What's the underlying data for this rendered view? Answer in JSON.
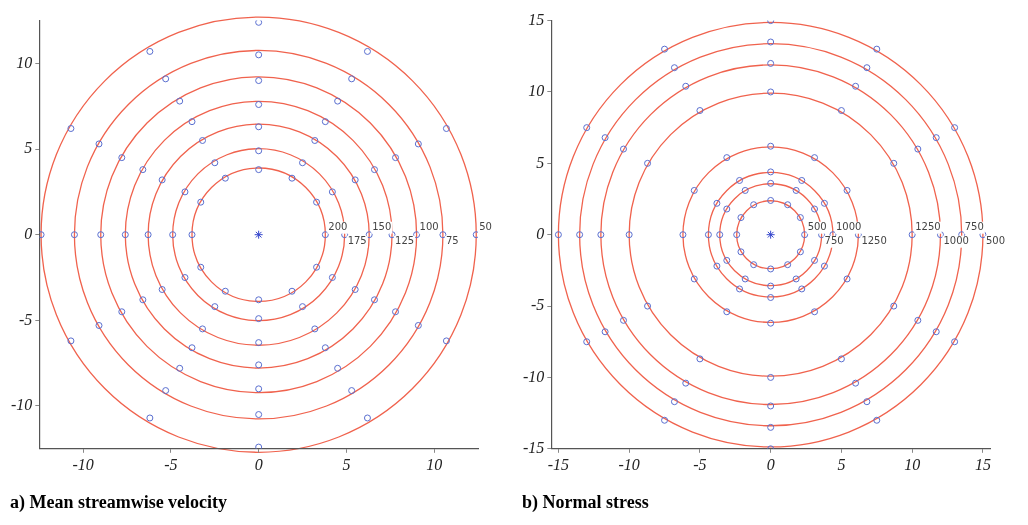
{
  "chart_data": [
    {
      "type": "scatter",
      "title": "a) Mean streamwise velocity",
      "xlim": [
        -12.5,
        12.5
      ],
      "ylim": [
        -12.5,
        12.5
      ],
      "xticks": [
        -10,
        -5,
        0,
        5,
        10
      ],
      "yticks": [
        -10,
        -5,
        0,
        5,
        10
      ],
      "grid": false,
      "legend": false,
      "annotations": [
        {
          "text": "200",
          "x": 3.8,
          "y": 0
        },
        {
          "text": "175",
          "x": 4.9,
          "y": 0
        },
        {
          "text": "150",
          "x": 6.3,
          "y": 0
        },
        {
          "text": "125",
          "x": 7.6,
          "y": 0
        },
        {
          "text": "100",
          "x": 9,
          "y": 0
        },
        {
          "text": "75",
          "x": 10.5,
          "y": 0
        },
        {
          "text": "50",
          "x": 12.4,
          "y": 0
        }
      ],
      "series": [
        {
          "marker": "circle",
          "color": "#5a6fd0",
          "x": [
            3.8,
            3.3,
            1.9,
            0,
            -1.9,
            -3.3,
            -3.8,
            -3.3,
            -1.9,
            0,
            1.9,
            3.3,
            4.9,
            4.2,
            2.5,
            0,
            -2.5,
            -4.2,
            -4.9,
            -4.2,
            -2.5,
            0,
            2.5,
            4.2,
            6.3,
            5.5,
            3.2,
            0,
            -3.2,
            -5.5,
            -6.3,
            -5.5,
            -3.2,
            0,
            3.2,
            5.5,
            7.6,
            6.6,
            3.8,
            0,
            -3.8,
            -6.6,
            -7.6,
            -6.6,
            -3.8,
            0,
            3.8,
            6.6,
            9,
            7.8,
            4.5,
            0,
            -4.5,
            -7.8,
            -9,
            -7.8,
            -4.5,
            0,
            4.5,
            7.8,
            10.5,
            9.1,
            5.3,
            0,
            -5.3,
            -9.1,
            -10.5,
            -9.1,
            -5.3,
            0,
            5.3,
            9.1,
            12.4,
            10.7,
            6.2,
            0,
            -6.2,
            -10.7,
            -12.4,
            -10.7,
            -6.2,
            0,
            6.2,
            10.7
          ],
          "values": [
            0,
            1.9,
            3.3,
            3.8,
            3.3,
            1.9,
            0,
            -1.9,
            -3.3,
            -3.8,
            -3.3,
            -1.9,
            0,
            2.5,
            4.2,
            4.9,
            4.2,
            2.5,
            0,
            -2.5,
            -4.2,
            -4.9,
            -4.2,
            -2.5,
            0,
            3.2,
            5.5,
            6.3,
            5.5,
            3.2,
            0,
            -3.2,
            -5.5,
            -6.3,
            -5.5,
            -3.2,
            0,
            3.8,
            6.6,
            7.6,
            6.6,
            3.8,
            0,
            -3.8,
            -6.6,
            -7.6,
            -6.6,
            -3.8,
            0,
            4.5,
            7.8,
            9,
            7.8,
            4.5,
            0,
            -4.5,
            -7.8,
            -9,
            -7.8,
            -4.5,
            0,
            5.3,
            9.1,
            10.5,
            9.1,
            5.3,
            0,
            -5.3,
            -9.1,
            -10.5,
            -9.1,
            -5.3,
            0,
            6.2,
            10.7,
            12.4,
            10.7,
            6.2,
            0,
            -6.2,
            -10.7,
            -12.4,
            -10.7,
            -6.2
          ]
        },
        {
          "marker": "cross",
          "color": "#3344cc",
          "x": [
            0
          ],
          "values": [
            0
          ]
        }
      ]
    },
    {
      "type": "scatter",
      "title": "b) Normal stress",
      "xlim": [
        -15.5,
        15.5
      ],
      "ylim": [
        -15,
        15
      ],
      "xticks": [
        -15,
        -10,
        -5,
        0,
        5,
        10,
        15
      ],
      "yticks": [
        -15,
        -10,
        -5,
        0,
        5,
        10,
        15
      ],
      "grid": false,
      "legend": false,
      "annotations": [
        {
          "text": "500",
          "x": 2.4,
          "y": 0
        },
        {
          "text": "750",
          "x": 3.6,
          "y": 0
        },
        {
          "text": "1000",
          "x": 4.4,
          "y": 0
        },
        {
          "text": "1250",
          "x": 6.2,
          "y": 0
        },
        {
          "text": "1250",
          "x": 10,
          "y": 0
        },
        {
          "text": "1000",
          "x": 12,
          "y": 0
        },
        {
          "text": "750",
          "x": 13.5,
          "y": 0
        },
        {
          "text": "500",
          "x": 15,
          "y": 0
        }
      ],
      "series": [
        {
          "marker": "circle",
          "color": "#5a6fd0",
          "x": [
            2.4,
            2.1,
            1.2,
            0,
            -1.2,
            -2.1,
            -2.4,
            -2.1,
            -1.2,
            0,
            1.2,
            2.1,
            3.6,
            3.1,
            1.8,
            0,
            -1.8,
            -3.1,
            -3.6,
            -3.1,
            -1.8,
            0,
            1.8,
            3.1,
            4.4,
            3.8,
            2.2,
            0,
            -2.2,
            -3.8,
            -4.4,
            -3.8,
            -2.2,
            0,
            2.2,
            3.8,
            6.2,
            5.4,
            3.1,
            0,
            -3.1,
            -5.4,
            -6.2,
            -5.4,
            -3.1,
            0,
            3.1,
            5.4,
            10,
            8.7,
            5,
            0,
            -5,
            -8.7,
            -10,
            -8.7,
            -5,
            0,
            5,
            8.7,
            12,
            10.4,
            6,
            0,
            -6,
            -10.4,
            -12,
            -10.4,
            -6,
            0,
            6,
            10.4,
            13.5,
            11.7,
            6.8,
            0,
            -6.8,
            -11.7,
            -13.5,
            -11.7,
            -6.8,
            0,
            6.8,
            11.7,
            15,
            13,
            7.5,
            0,
            -7.5,
            -13,
            -15,
            -13,
            -7.5,
            0,
            7.5,
            13
          ],
          "values": [
            0,
            1.2,
            2.1,
            2.4,
            2.1,
            1.2,
            0,
            -1.2,
            -2.1,
            -2.4,
            -2.1,
            -1.2,
            0,
            1.8,
            3.1,
            3.6,
            3.1,
            1.8,
            0,
            -1.8,
            -3.1,
            -3.6,
            -3.1,
            -1.8,
            0,
            2.2,
            3.8,
            4.4,
            3.8,
            2.2,
            0,
            -2.2,
            -3.8,
            -4.4,
            -3.8,
            -2.2,
            0,
            3.1,
            5.4,
            6.2,
            5.4,
            3.1,
            0,
            -3.1,
            -5.4,
            -6.2,
            -5.4,
            -3.1,
            0,
            5,
            8.7,
            10,
            8.7,
            5,
            0,
            -5,
            -8.7,
            -10,
            -8.7,
            -5,
            0,
            6,
            10.4,
            12,
            10.4,
            6,
            0,
            -6,
            -10.4,
            -12,
            -10.4,
            -6,
            0,
            6.8,
            11.7,
            13.5,
            11.7,
            6.8,
            0,
            -6.8,
            -11.7,
            -13.5,
            -11.7,
            -6.8,
            0,
            7.5,
            13,
            15,
            13,
            7.5,
            0,
            -7.5,
            -13,
            -15,
            -13,
            -7.5
          ]
        },
        {
          "marker": "cross",
          "color": "#3344cc",
          "x": [
            0
          ],
          "values": [
            0
          ]
        }
      ]
    }
  ]
}
